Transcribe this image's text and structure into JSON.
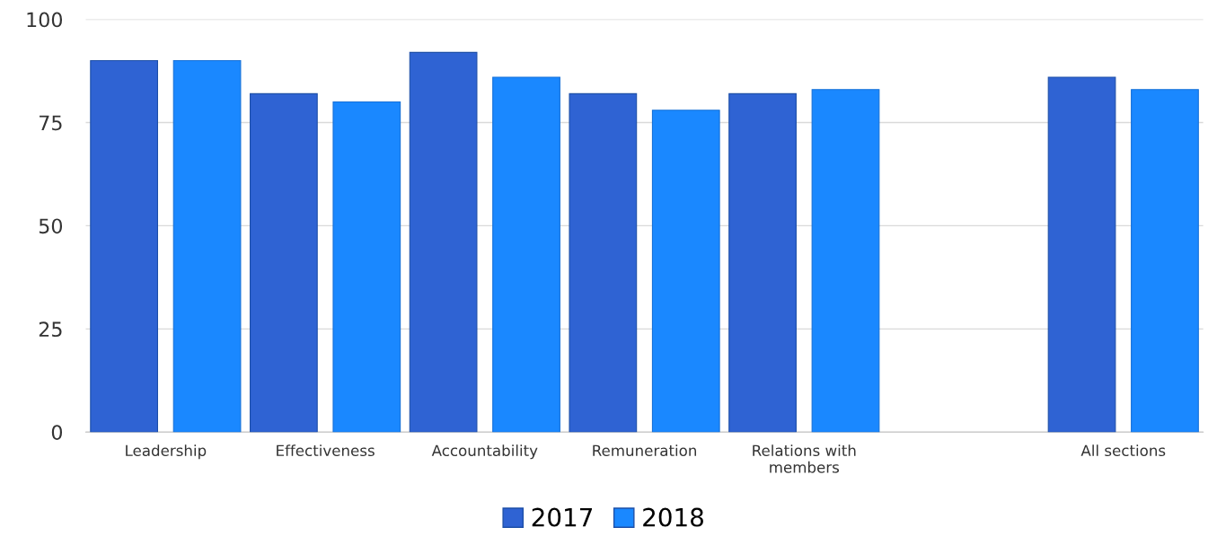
{
  "chart_data": {
    "type": "bar",
    "categories": [
      "Leadership",
      "Effectiveness",
      "Accountability",
      "Remuneration",
      "Relations with\nmembers",
      null,
      "All sections"
    ],
    "series": [
      {
        "name": "2017",
        "color": "#2f63d3",
        "values": [
          90,
          82,
          92,
          82,
          82,
          null,
          86
        ]
      },
      {
        "name": "2018",
        "color": "#1a88ff",
        "values": [
          90,
          80,
          86,
          78,
          83,
          null,
          83
        ]
      }
    ],
    "ylim": [
      0,
      100
    ],
    "yticks": [
      0,
      25,
      50,
      75,
      100
    ],
    "grid": "y",
    "legend": "bottom"
  }
}
